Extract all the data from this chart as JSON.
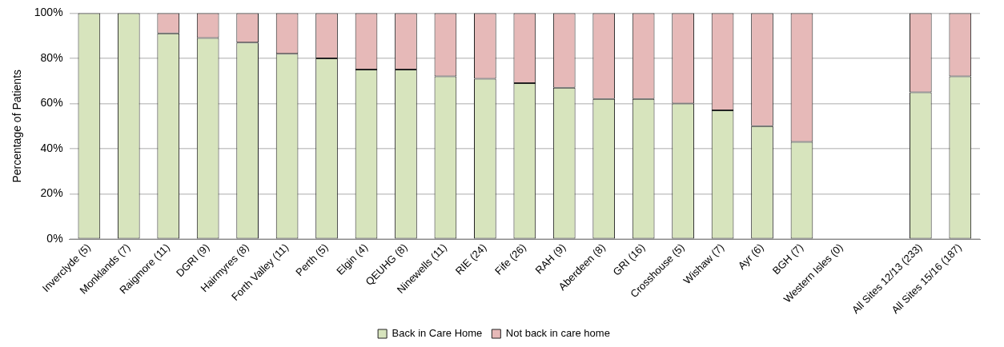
{
  "chart_data": {
    "type": "bar",
    "stacked": true,
    "ylabel": "Percentage of Patients",
    "categories": [
      "Inverclyde (5)",
      "Monklands (7)",
      "Raigmore (11)",
      "DGRI (9)",
      "Hairmyres (8)",
      "Forth Valley (11)",
      "Perth (5)",
      "Elgin (4)",
      "QEUHG (8)",
      "Ninewells (11)",
      "RIE (24)",
      "Fife (26)",
      "RAH (9)",
      "Aberdeen (8)",
      "GRI (16)",
      "Crosshouse (5)",
      "Wishaw (7)",
      "Ayr (6)",
      "BGH (7)",
      "Western Isles (0)",
      null,
      "All Sites 12/13 (233)",
      "All Sites 15/16 (187)"
    ],
    "series": [
      {
        "name": "Back in Care Home",
        "color": "#d7e4bd",
        "values": [
          100,
          100,
          91,
          89,
          87,
          82,
          80,
          75,
          75,
          72,
          71,
          69,
          67,
          62,
          62,
          60,
          57,
          50,
          43,
          null,
          null,
          65,
          72
        ]
      },
      {
        "name": "Not back in care home",
        "color": "#e6b9b8",
        "values": [
          0,
          0,
          9,
          11,
          13,
          18,
          20,
          25,
          25,
          28,
          29,
          31,
          33,
          38,
          38,
          40,
          43,
          50,
          57,
          null,
          null,
          35,
          28
        ]
      }
    ],
    "ylim": [
      0,
      100
    ],
    "yticks": [
      {
        "value": 0,
        "label": "0%"
      },
      {
        "value": 20,
        "label": "20%"
      },
      {
        "value": 40,
        "label": "40%"
      },
      {
        "value": 60,
        "label": "60%"
      },
      {
        "value": 80,
        "label": "80%"
      },
      {
        "value": 100,
        "label": "100%"
      }
    ],
    "grid": "y",
    "legend": "bottom"
  }
}
